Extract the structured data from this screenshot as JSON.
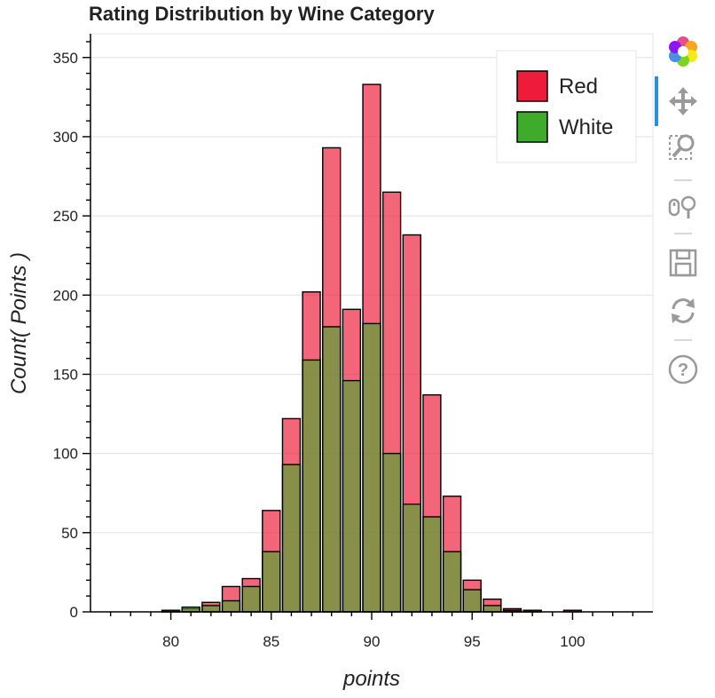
{
  "chart_data": {
    "type": "bar",
    "title": "Rating Distribution by Wine Category",
    "xlabel": "points",
    "ylabel": "Count( Points )",
    "xlim": [
      76,
      104
    ],
    "ylim": [
      0,
      365
    ],
    "x_ticks": [
      80,
      85,
      90,
      95,
      100
    ],
    "y_ticks": [
      0,
      50,
      100,
      150,
      200,
      250,
      300,
      350
    ],
    "grid": "horizontal",
    "legend_position": "top-right",
    "series": [
      {
        "name": "Red",
        "color": "#ee1c3a",
        "x": [
          80,
          81,
          82,
          83,
          84,
          85,
          86,
          87,
          88,
          89,
          90,
          91,
          92,
          93,
          94,
          95,
          96,
          97,
          98,
          100
        ],
        "values": [
          1,
          2,
          6,
          16,
          21,
          64,
          122,
          202,
          293,
          191,
          333,
          265,
          238,
          137,
          73,
          20,
          8,
          2,
          1,
          1
        ]
      },
      {
        "name": "White",
        "color": "#3fab2a",
        "x": [
          80,
          81,
          82,
          83,
          84,
          85,
          86,
          87,
          88,
          89,
          90,
          91,
          92,
          93,
          94,
          95,
          96,
          97,
          98
        ],
        "values": [
          1,
          3,
          4,
          7,
          16,
          38,
          93,
          159,
          180,
          146,
          182,
          100,
          68,
          60,
          38,
          14,
          4,
          1,
          1
        ]
      }
    ]
  },
  "toolbar": {
    "tools": [
      {
        "name": "bokeh-logo-icon"
      },
      {
        "name": "pan-icon"
      },
      {
        "name": "box-zoom-icon"
      },
      {
        "name": "wheel-zoom-icon"
      },
      {
        "name": "save-icon"
      },
      {
        "name": "reset-icon"
      },
      {
        "name": "help-icon"
      }
    ]
  }
}
